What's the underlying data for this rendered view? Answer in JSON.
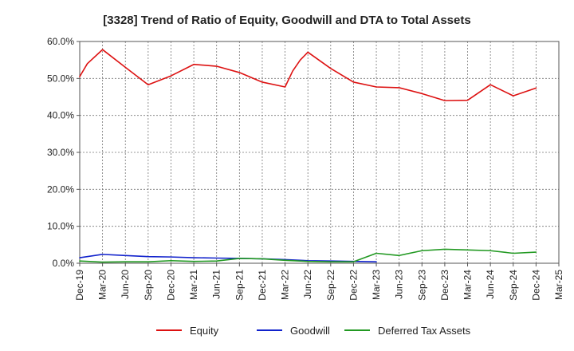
{
  "chart_data": {
    "type": "line",
    "title": "[3328]  Trend of Ratio of Equity, Goodwill and DTA to Total Assets",
    "xlabel": "",
    "ylabel": "",
    "ylim": [
      0,
      60
    ],
    "yticks": [
      "0.0%",
      "10.0%",
      "20.0%",
      "30.0%",
      "40.0%",
      "50.0%",
      "60.0%"
    ],
    "ytick_values": [
      0,
      10,
      20,
      30,
      40,
      50,
      60
    ],
    "x": [
      "Dec-19",
      "Mar-20",
      "Jun-20",
      "Sep-20",
      "Dec-20",
      "Mar-21",
      "Jun-21",
      "Sep-21",
      "Dec-21",
      "Mar-22",
      "Jun-22",
      "Sep-22",
      "Dec-22",
      "Mar-23",
      "Jun-23",
      "Sep-23",
      "Dec-23",
      "Mar-24",
      "Jun-24",
      "Sep-24",
      "Dec-24",
      "Mar-25"
    ],
    "grid": true,
    "legend_position": "bottom",
    "series": [
      {
        "name": "Equity",
        "color": "#dd1111",
        "points": [
          [
            "Dec-19",
            50.5
          ],
          [
            "Jan-20",
            54.0
          ],
          [
            "Mar-20",
            57.8
          ],
          [
            "Jun-20",
            53.0
          ],
          [
            "Sep-20",
            48.3
          ],
          [
            "Dec-20",
            50.7
          ],
          [
            "Mar-21",
            53.8
          ],
          [
            "Jun-21",
            53.3
          ],
          [
            "Sep-21",
            51.6
          ],
          [
            "Dec-21",
            49.0
          ],
          [
            "Mar-22",
            47.7
          ],
          [
            "Apr-22",
            52.0
          ],
          [
            "May-22",
            55.0
          ],
          [
            "Jun-22",
            57.1
          ],
          [
            "Sep-22",
            52.7
          ],
          [
            "Dec-22",
            49.0
          ],
          [
            "Mar-23",
            47.7
          ],
          [
            "Jun-23",
            47.5
          ],
          [
            "Sep-23",
            45.9
          ],
          [
            "Dec-23",
            44.0
          ],
          [
            "Mar-24",
            44.1
          ],
          [
            "Jun-24",
            48.3
          ],
          [
            "Sep-24",
            45.3
          ],
          [
            "Dec-24",
            47.4
          ]
        ]
      },
      {
        "name": "Goodwill",
        "color": "#1122cc",
        "points": [
          [
            "Dec-19",
            1.5
          ],
          [
            "Mar-20",
            2.4
          ],
          [
            "Jun-20",
            2.1
          ],
          [
            "Sep-20",
            1.8
          ],
          [
            "Dec-20",
            1.7
          ],
          [
            "Mar-21",
            1.5
          ],
          [
            "Jun-21",
            1.4
          ],
          [
            "Sep-21",
            1.3
          ],
          [
            "Dec-21",
            1.2
          ],
          [
            "Mar-22",
            1.0
          ],
          [
            "Jun-22",
            0.7
          ],
          [
            "Sep-22",
            0.6
          ],
          [
            "Dec-22",
            0.5
          ],
          [
            "Mar-23",
            0.4
          ]
        ]
      },
      {
        "name": "Deferred Tax Assets",
        "color": "#229922",
        "points": [
          [
            "Dec-19",
            0.6
          ],
          [
            "Mar-20",
            0.3
          ],
          [
            "Jun-20",
            0.4
          ],
          [
            "Sep-20",
            0.4
          ],
          [
            "Dec-20",
            0.7
          ],
          [
            "Mar-21",
            0.5
          ],
          [
            "Jun-21",
            0.6
          ],
          [
            "Sep-21",
            1.3
          ],
          [
            "Dec-21",
            1.2
          ],
          [
            "Mar-22",
            0.8
          ],
          [
            "Jun-22",
            0.5
          ],
          [
            "Sep-22",
            0.4
          ],
          [
            "Dec-22",
            0.4
          ],
          [
            "Mar-23",
            2.7
          ],
          [
            "Jun-23",
            2.1
          ],
          [
            "Sep-23",
            3.4
          ],
          [
            "Dec-23",
            3.8
          ],
          [
            "Mar-24",
            3.6
          ],
          [
            "Jun-24",
            3.4
          ],
          [
            "Sep-24",
            2.7
          ],
          [
            "Dec-24",
            3.0
          ]
        ]
      }
    ]
  }
}
